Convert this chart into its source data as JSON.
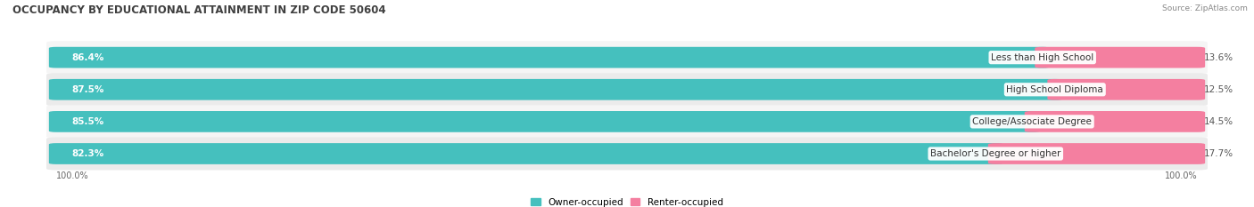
{
  "title": "OCCUPANCY BY EDUCATIONAL ATTAINMENT IN ZIP CODE 50604",
  "source": "Source: ZipAtlas.com",
  "categories": [
    "Less than High School",
    "High School Diploma",
    "College/Associate Degree",
    "Bachelor's Degree or higher"
  ],
  "owner_values": [
    86.4,
    87.5,
    85.5,
    82.3
  ],
  "renter_values": [
    13.6,
    12.5,
    14.5,
    17.7
  ],
  "owner_color": "#45c0be",
  "renter_color": "#f47fa0",
  "row_bg_color_odd": "#ebebeb",
  "row_bg_color_even": "#f5f5f5",
  "title_color": "#404040",
  "legend_owner": "Owner-occupied",
  "legend_renter": "Renter-occupied",
  "x_left_label": "100.0%",
  "x_right_label": "100.0%",
  "figsize": [
    14.06,
    2.33
  ],
  "dpi": 100
}
